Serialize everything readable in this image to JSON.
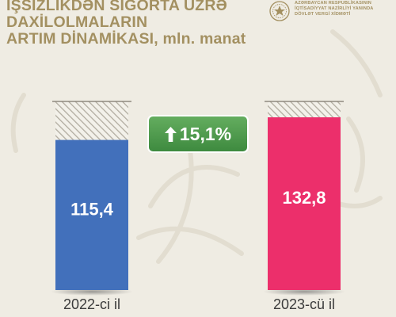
{
  "header": {
    "title_lines": [
      "İŞSİZLİKDƏN SIĞORTA ÜZRƏ",
      "DAXİLOLMALARIN",
      "ARTIM DİNAMİKASI,"
    ],
    "unit": "mln. manat",
    "org_lines": [
      "AZƏRBAYCAN RESPUBLİKASININ",
      "İQTİSADİYYAT NAZİRLİYİ YANINDA",
      "DÖVLƏT VERGİ XİDMƏTİ"
    ]
  },
  "growth": {
    "label": "15,1%",
    "icon": "arrow-up-icon"
  },
  "colors": {
    "background": "#efece3",
    "title": "#a39061",
    "bar_2022": "#4270bb",
    "bar_2023": "#ec2f6b",
    "growth_badge": "#4f9a4e"
  },
  "chart_data": {
    "type": "bar",
    "categories": [
      "2022-ci il",
      "2023-cü il"
    ],
    "values": [
      115.4,
      132.8
    ],
    "value_labels": [
      "115,4",
      "132,8"
    ],
    "ylim": [
      0,
      145
    ],
    "title": "",
    "xlabel": "",
    "ylabel": "",
    "grid": false,
    "legend": "none"
  }
}
